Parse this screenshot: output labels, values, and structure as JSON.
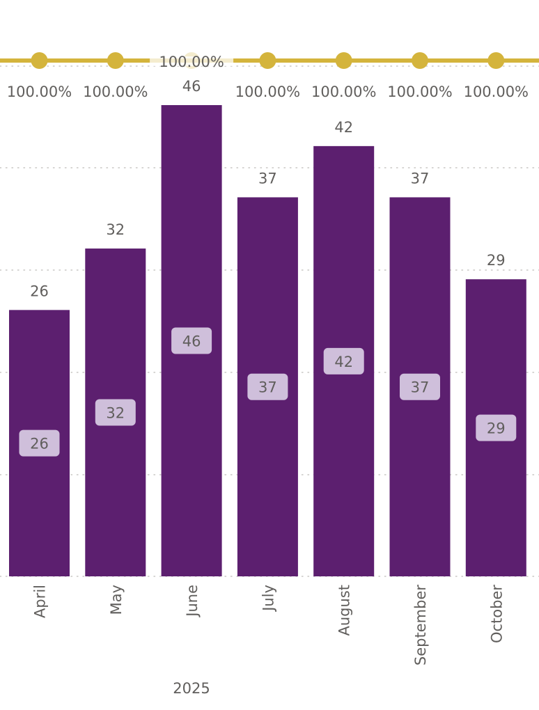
{
  "chart_data": {
    "type": "bar",
    "categories": [
      "April",
      "May",
      "June",
      "July",
      "August",
      "September",
      "October"
    ],
    "group_label": "2025",
    "values": [
      26,
      32,
      46,
      37,
      42,
      37,
      29
    ],
    "series": [
      {
        "values": [
          26,
          32,
          46,
          37,
          42,
          37,
          29
        ]
      },
      {
        "type": "line",
        "values": [
          1,
          1,
          1,
          1,
          1,
          1,
          1
        ],
        "labels": [
          "100.00%",
          "100.00%",
          "100.00%",
          "100.00%",
          "100.00%",
          "100.00%",
          "100.00%"
        ]
      }
    ],
    "ylim": [
      0,
      46
    ],
    "grid": true,
    "legend": "none",
    "colors": {
      "bar": "#5c1f6f",
      "line": "#d4b43c",
      "inner_label_bg": "#cfbfdb",
      "grid": "#c8c6c4",
      "text": "#605e5c"
    }
  }
}
